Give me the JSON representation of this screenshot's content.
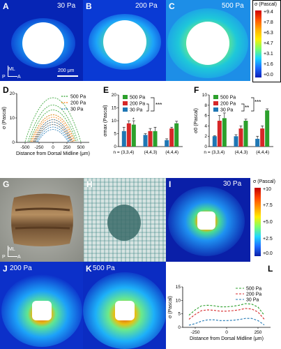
{
  "figure": {
    "top_heatmaps": [
      {
        "label": "A",
        "pressure": "30 Pa"
      },
      {
        "label": "B",
        "pressure": "200 Pa"
      },
      {
        "label": "C",
        "pressure": "500 Pa"
      }
    ],
    "top_scale": {
      "title": "σ (Pascal)",
      "ticks": [
        "+9.4",
        "+7.8",
        "+6.3",
        "+4.7",
        "+3.1",
        "+1.6",
        "+0.0"
      ]
    },
    "panel_a_axes": {
      "ml": "ML",
      "p": "P",
      "a": "A",
      "scalebar": "200 μm"
    },
    "panel_g_axes": {
      "ml": "ML",
      "p": "P",
      "a": "A"
    },
    "bottom_heatmaps": [
      {
        "label": "I",
        "pressure": "30 Pa"
      },
      {
        "label": "J",
        "pressure": "200 Pa"
      },
      {
        "label": "K",
        "pressure": "500 Pa"
      }
    ],
    "bottom_scale": {
      "title": "σ (Pascal)",
      "ticks": [
        "+10",
        "+7.5",
        "+5.0",
        "+2.5",
        "+0.0"
      ]
    },
    "photo_labels": {
      "g": "G",
      "h": "H"
    }
  },
  "chart_data": [
    {
      "panel": "D",
      "type": "line",
      "ylabel": "σ (Pascal)",
      "xlabel": "Distance from Dorsal Midline (μm)",
      "xlim": [
        -650,
        650
      ],
      "ylim": [
        0,
        20
      ],
      "xticks": [
        "-500",
        "-250",
        "0",
        "250",
        "500"
      ],
      "yticks": [
        "0",
        "10",
        "20"
      ],
      "legend": [
        "500 Pa",
        "200 Pa",
        "30 Pa"
      ],
      "colors": [
        "#2ca02c",
        "#ff7f0e",
        "#1f77b4"
      ]
    },
    {
      "panel": "E",
      "type": "bar",
      "ylabel": "σmax (Pascal)",
      "groups": [
        "n = (3,3,4)",
        "(4,4,3)",
        "(4,4,4)"
      ],
      "series": [
        {
          "name": "30 Pa",
          "color": "#1f77b4",
          "values": [
            6.0,
            4.5,
            2.5
          ],
          "err": [
            1.5,
            0.5,
            0.5
          ]
        },
        {
          "name": "200 Pa",
          "color": "#d62728",
          "values": [
            9.0,
            6.0,
            7.0
          ],
          "err": [
            1.0,
            1.0,
            0.5
          ]
        },
        {
          "name": "500 Pa",
          "color": "#2ca02c",
          "values": [
            8.5,
            6.0,
            9.0
          ],
          "err": [
            1.5,
            1.5,
            0.8
          ]
        }
      ],
      "ylim": [
        0,
        20
      ],
      "yticks": [
        "0",
        "5",
        "10",
        "15",
        "20"
      ],
      "annotation": "***",
      "legend": [
        "500 Pa",
        "200 Pa",
        "30 Pa"
      ],
      "star_mark": "*"
    },
    {
      "panel": "F",
      "type": "bar",
      "ylabel": "σ0 (Pascal)",
      "groups": [
        "n = (3,3,4)",
        "(4,4,3)",
        "(4,4,4)"
      ],
      "series": [
        {
          "name": "30 Pa",
          "color": "#1f77b4",
          "values": [
            2.0,
            2.0,
            1.5
          ],
          "err": [
            0.1,
            0.3,
            0.5
          ]
        },
        {
          "name": "200 Pa",
          "color": "#d62728",
          "values": [
            5.0,
            3.5,
            3.5
          ],
          "err": [
            1.0,
            0.5,
            0.5
          ]
        },
        {
          "name": "500 Pa",
          "color": "#2ca02c",
          "values": [
            5.5,
            5.0,
            7.0
          ],
          "err": [
            1.0,
            0.3,
            0.3
          ]
        }
      ],
      "ylim": [
        0,
        10
      ],
      "yticks": [
        "0",
        "2",
        "4",
        "6",
        "8",
        "10"
      ],
      "annotations": [
        "**",
        "***"
      ],
      "legend": [
        "500 Pa",
        "200 Pa",
        "30 Pa"
      ]
    },
    {
      "panel": "L",
      "type": "line",
      "ylabel": "σ (Pascal)",
      "xlabel": "Distance from Dorsal Midline (μm)",
      "xlim": [
        -350,
        350
      ],
      "ylim": [
        0,
        15
      ],
      "xticks": [
        "-250",
        "0",
        "250"
      ],
      "yticks": [
        "0",
        "5",
        "10",
        "15"
      ],
      "series": [
        {
          "name": "500 Pa",
          "color": "#2ca02c",
          "x": [
            -300,
            -250,
            -200,
            -150,
            -100,
            -50,
            0,
            50,
            100,
            150,
            200,
            250,
            300
          ],
          "y": [
            4.5,
            6.5,
            8.0,
            8.2,
            8.0,
            7.6,
            7.6,
            7.8,
            8.2,
            8.8,
            8.6,
            7.5,
            4.5
          ]
        },
        {
          "name": "200 Pa",
          "color": "#d62728",
          "x": [
            -300,
            -250,
            -200,
            -150,
            -100,
            -50,
            0,
            50,
            100,
            150,
            200,
            250,
            300
          ],
          "y": [
            3.0,
            4.8,
            6.2,
            6.5,
            6.3,
            6.0,
            6.0,
            6.2,
            6.5,
            7.0,
            6.8,
            5.7,
            3.0
          ]
        },
        {
          "name": "30 Pa",
          "color": "#1f77b4",
          "x": [
            -300,
            -250,
            -200,
            -150,
            -100,
            -50,
            0,
            50,
            100,
            150,
            200,
            250,
            300
          ],
          "y": [
            0.8,
            1.4,
            2.3,
            2.8,
            2.8,
            2.5,
            2.5,
            2.6,
            2.9,
            3.3,
            3.3,
            2.5,
            0.9
          ]
        }
      ]
    }
  ]
}
